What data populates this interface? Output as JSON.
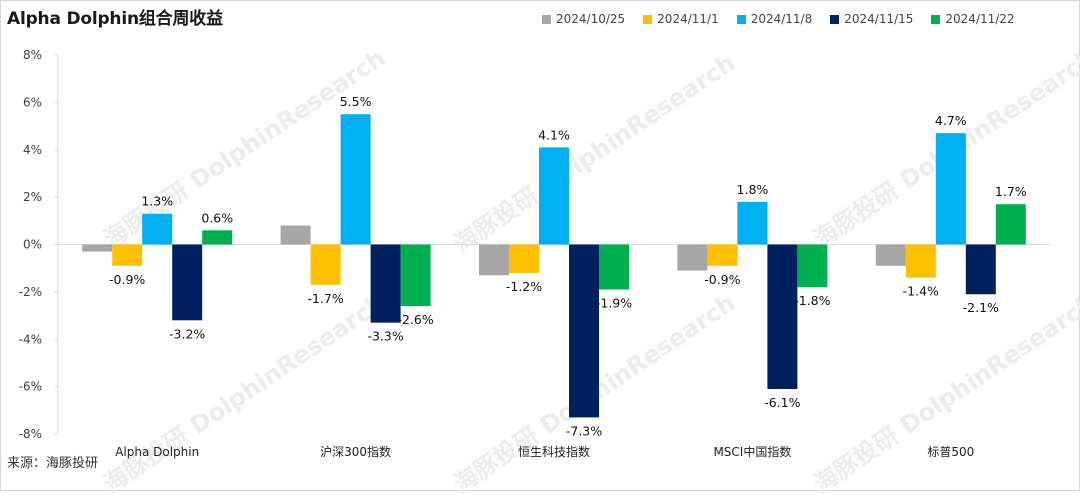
{
  "title": "Alpha Dolphin组合周收益",
  "source": "来源：海豚投研",
  "watermark": "海豚投研 DolphinResearch",
  "colors": {
    "s1": "#a6a6a6",
    "s2": "#ffc000",
    "s3": "#00b0f0",
    "s4": "#002060",
    "s5": "#00b050",
    "axis": "#d9d9d9",
    "text": "#404040"
  },
  "chart_data": {
    "type": "bar",
    "title": "Alpha Dolphin组合周收益",
    "xlabel": "",
    "ylabel": "",
    "categories": [
      "Alpha Dolphin",
      "沪深300指数",
      "恒生科技指数",
      "MSCI中国指数",
      "标普500"
    ],
    "ylim": [
      -8,
      8
    ],
    "yticks": [
      8,
      6,
      4,
      2,
      0,
      -2,
      -4,
      -6,
      -8
    ],
    "ytick_labels": [
      "8%",
      "6%",
      "4%",
      "2%",
      "0%",
      "-2%",
      "-4%",
      "-6%",
      "-8%"
    ],
    "grid": false,
    "legend_position": "top-right",
    "series": [
      {
        "name": "2024/10/25",
        "color_key": "s1",
        "values": [
          -0.3,
          0.8,
          -1.3,
          -1.1,
          -0.9
        ],
        "labels": [
          "",
          "",
          "",
          "",
          ""
        ]
      },
      {
        "name": "2024/11/1",
        "color_key": "s2",
        "values": [
          -0.9,
          -1.7,
          -1.2,
          -0.9,
          -1.4
        ],
        "labels": [
          "-0.9%",
          "-1.7%",
          "-1.2%",
          "-0.9%",
          "-1.4%"
        ]
      },
      {
        "name": "2024/11/8",
        "color_key": "s3",
        "values": [
          1.3,
          5.5,
          4.1,
          1.8,
          4.7
        ],
        "labels": [
          "1.3%",
          "5.5%",
          "4.1%",
          "1.8%",
          "4.7%"
        ]
      },
      {
        "name": "2024/11/15",
        "color_key": "s4",
        "values": [
          -3.2,
          -3.3,
          -7.3,
          -6.1,
          -2.1
        ],
        "labels": [
          "-3.2%",
          "-3.3%",
          "-7.3%",
          "-6.1%",
          "-2.1%"
        ]
      },
      {
        "name": "2024/11/22",
        "color_key": "s5",
        "values": [
          0.6,
          -2.6,
          -1.9,
          -1.8,
          1.7
        ],
        "labels": [
          "0.6%",
          "-2.6%",
          "-1.9%",
          "-1.8%",
          "1.7%"
        ]
      }
    ]
  }
}
